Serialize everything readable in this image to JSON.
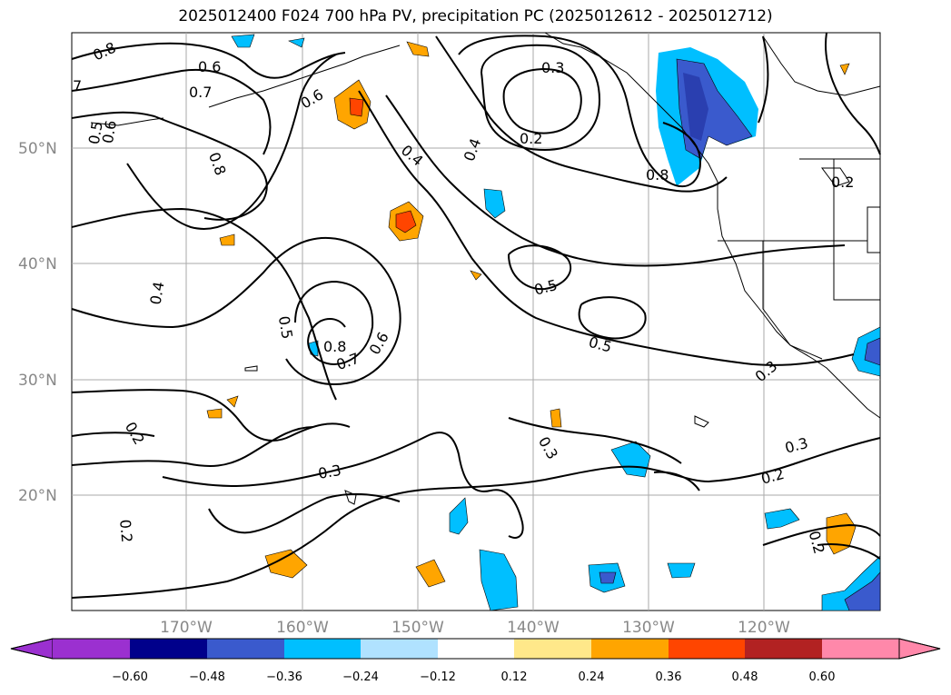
{
  "title": "2025012400 F024 700 hPa PV, precipitation PC (2025012612 - 2025012712)",
  "lat_labels": [
    "50°N",
    "40°N",
    "30°N",
    "20°N"
  ],
  "lon_labels": [
    "170°W",
    "160°W",
    "150°W",
    "140°W",
    "130°W",
    "120°W"
  ],
  "contour_labels": [
    "0.8",
    "0.6",
    "0.7",
    "7",
    "0.5",
    "0.6",
    "0.6",
    "0.8",
    "0.4",
    "0.4",
    "0.3",
    "0.2",
    "0.8",
    "0.2",
    "0.4",
    "0.5",
    "0.5",
    "0.5",
    "0.8",
    "0.7",
    "0.6",
    "0.3",
    "0.2",
    "0.3",
    "0.3",
    "0.2",
    "0.3",
    "0.2",
    "0.2"
  ],
  "colorbar": {
    "ticks": [
      "−0.60",
      "−0.48",
      "−0.36",
      "−0.24",
      "−0.12",
      "0.12",
      "0.24",
      "0.36",
      "0.48",
      "0.60"
    ],
    "colors": [
      "#9b30d0",
      "#00008b",
      "#3a5acd",
      "#00bfff",
      "#b0e2ff",
      "#ffffff",
      "#ffe88a",
      "#ffa500",
      "#ff4500",
      "#b22222",
      "#ff88aa"
    ]
  }
}
